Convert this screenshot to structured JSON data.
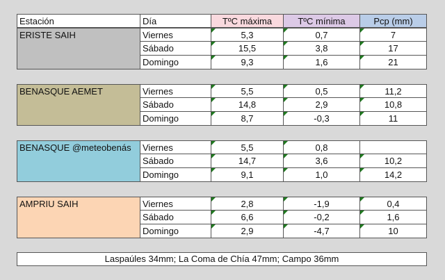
{
  "header": {
    "estacion": "Estación",
    "dia": "Día",
    "tmax": "TºC máxima",
    "tmin": "TºC mínima",
    "pcp": "Pcp (mm)"
  },
  "colors": {
    "eriste": "#c0c0c0",
    "benasque_aemet": "#c4bd97",
    "benasque_meteo": "#92cddc",
    "ampriu": "#fcd5b4"
  },
  "groups": [
    {
      "station": "ERISTE SAIH",
      "rows": [
        {
          "day": "Viernes",
          "tmax": "5,3",
          "tmin": "0,7",
          "pcp": "7"
        },
        {
          "day": "Sábado",
          "tmax": "15,5",
          "tmin": "3,8",
          "pcp": "17"
        },
        {
          "day": "Domingo",
          "tmax": "9,3",
          "tmin": "1,6",
          "pcp": "21"
        }
      ]
    },
    {
      "station": "BENASQUE AEMET",
      "rows": [
        {
          "day": "Viernes",
          "tmax": "5,5",
          "tmin": "0,5",
          "pcp": "11,2"
        },
        {
          "day": "Sábado",
          "tmax": "14,8",
          "tmin": "2,9",
          "pcp": "10,8"
        },
        {
          "day": "Domingo",
          "tmax": "8,7",
          "tmin": "-0,3",
          "pcp": "11"
        }
      ]
    },
    {
      "station": "BENASQUE @meteobenás",
      "rows": [
        {
          "day": "Viernes",
          "tmax": "5,5",
          "tmin": "0,8",
          "pcp": ""
        },
        {
          "day": "Sábado",
          "tmax": "14,7",
          "tmin": "3,6",
          "pcp": "10,2"
        },
        {
          "day": "Domingo",
          "tmax": "9,1",
          "tmin": "1,0",
          "pcp": "14,2"
        }
      ]
    },
    {
      "station": "AMPRIU SAIH",
      "rows": [
        {
          "day": "Viernes",
          "tmax": "2,8",
          "tmin": "-1,9",
          "pcp": "0,4"
        },
        {
          "day": "Sábado",
          "tmax": "6,6",
          "tmin": "-0,2",
          "pcp": "1,6"
        },
        {
          "day": "Domingo",
          "tmax": "2,9",
          "tmin": "-4,7",
          "pcp": "10"
        }
      ]
    }
  ],
  "note": "Laspaúles 34mm; La Coma de Chía 47mm; Campo 36mm"
}
